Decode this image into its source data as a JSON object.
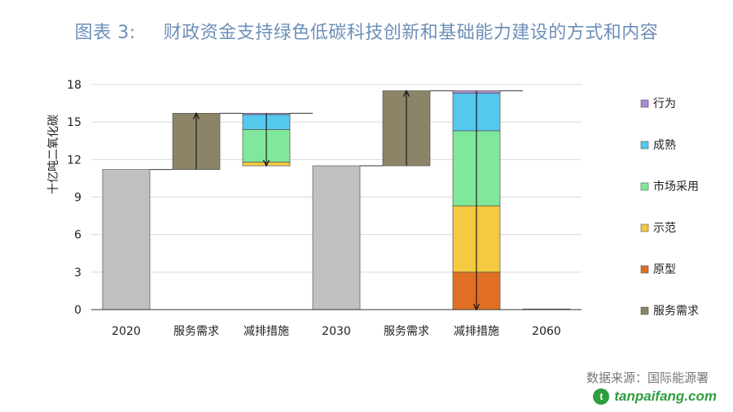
{
  "title": {
    "label": "图表 3:",
    "text": "财政资金支持绿色低碳科技创新和基础能力建设的方式和内容"
  },
  "source": "数据来源：国际能源署",
  "brand": "tanpaifang.com",
  "colors": {
    "total": "#c0c0c0",
    "service": "#8c8466",
    "prototype": "#e06f24",
    "demo": "#f5c940",
    "market": "#7fe89a",
    "mature": "#55c8ee",
    "behavior": "#a98ad4"
  },
  "chart_data": {
    "type": "bar",
    "subtype": "waterfall",
    "ylabel": "十亿吨二氧化碳",
    "ylim": [
      0,
      18
    ],
    "yticks": [
      0,
      3,
      6,
      9,
      12,
      15,
      18
    ],
    "grid": true,
    "legend_position": "right",
    "categories": [
      "2020",
      "服务需求",
      "减排措施",
      "2030",
      "服务需求",
      "减排措施",
      "2060"
    ],
    "legend": [
      "行为",
      "成熟",
      "市场采用",
      "示范",
      "原型",
      "服务需求"
    ],
    "bars": [
      {
        "category": "2020",
        "segments": [
          {
            "name": "total",
            "from": 0,
            "to": 11.2
          }
        ]
      },
      {
        "category": "服务需求",
        "arrow": "up",
        "segments": [
          {
            "name": "服务需求",
            "from": 11.2,
            "to": 15.7
          }
        ]
      },
      {
        "category": "减排措施",
        "arrow": "down",
        "segments": [
          {
            "name": "示范",
            "from": 11.5,
            "to": 11.8
          },
          {
            "name": "市场采用",
            "from": 11.8,
            "to": 14.4
          },
          {
            "name": "成熟",
            "from": 14.4,
            "to": 15.6
          },
          {
            "name": "行为",
            "from": 15.6,
            "to": 15.7
          }
        ]
      },
      {
        "category": "2030",
        "segments": [
          {
            "name": "total",
            "from": 0,
            "to": 11.5
          }
        ]
      },
      {
        "category": "服务需求",
        "arrow": "up",
        "segments": [
          {
            "name": "服务需求",
            "from": 11.5,
            "to": 17.5
          }
        ]
      },
      {
        "category": "减排措施",
        "arrow": "down",
        "segments": [
          {
            "name": "原型",
            "from": 0,
            "to": 3.0
          },
          {
            "name": "示范",
            "from": 3.0,
            "to": 8.3
          },
          {
            "name": "市场采用",
            "from": 8.3,
            "to": 14.3
          },
          {
            "name": "成熟",
            "from": 14.3,
            "to": 17.3
          },
          {
            "name": "行为",
            "from": 17.3,
            "to": 17.5
          }
        ]
      },
      {
        "category": "2060",
        "segments": [
          {
            "name": "total",
            "from": 0,
            "to": 0.05
          }
        ]
      }
    ]
  }
}
